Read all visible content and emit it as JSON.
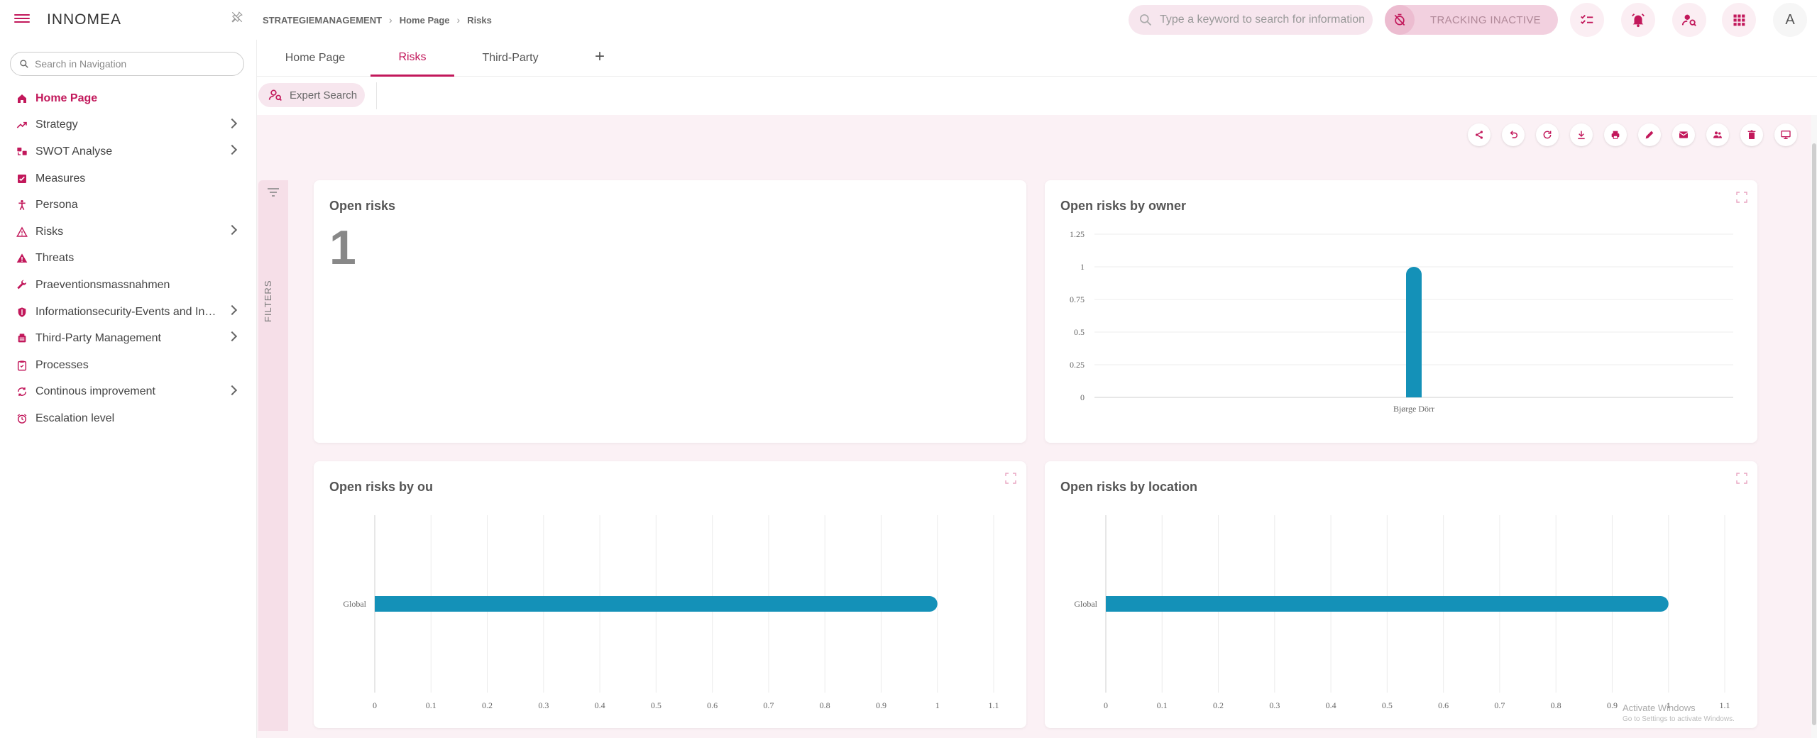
{
  "app": {
    "logo": "INNOMEA",
    "breadcrumb": [
      "STRATEGIEMANAGEMENT",
      "Home Page",
      "Risks"
    ],
    "search_placeholder": "Type a keyword to search for information",
    "tracking_label": "TRACKING INACTIVE",
    "avatar_letter": "A"
  },
  "sidebar": {
    "search_placeholder": "Search in Navigation",
    "items": [
      {
        "label": "Home Page",
        "icon": "home-icon",
        "active": true,
        "expandable": false
      },
      {
        "label": "Strategy",
        "icon": "trending-icon",
        "active": false,
        "expandable": true
      },
      {
        "label": "SWOT Analyse",
        "icon": "swot-icon",
        "active": false,
        "expandable": true
      },
      {
        "label": "Measures",
        "icon": "checkbox-icon",
        "active": false,
        "expandable": false
      },
      {
        "label": "Persona",
        "icon": "person-icon",
        "active": false,
        "expandable": false
      },
      {
        "label": "Risks",
        "icon": "warning-outline-icon",
        "active": false,
        "expandable": true
      },
      {
        "label": "Threats",
        "icon": "warning-icon",
        "active": false,
        "expandable": false
      },
      {
        "label": "Praeventionsmassnahmen",
        "icon": "wrench-icon",
        "active": false,
        "expandable": false
      },
      {
        "label": "Informationsecurity-Events and Incid...",
        "icon": "shield-icon",
        "active": false,
        "expandable": true
      },
      {
        "label": "Third-Party Management",
        "icon": "building-icon",
        "active": false,
        "expandable": true
      },
      {
        "label": "Processes",
        "icon": "clipboard-icon",
        "active": false,
        "expandable": false
      },
      {
        "label": "Continous improvement",
        "icon": "cycle-icon",
        "active": false,
        "expandable": true
      },
      {
        "label": "Escalation level",
        "icon": "alarm-icon",
        "active": false,
        "expandable": false
      }
    ]
  },
  "tabs": [
    {
      "label": "Home Page",
      "active": false
    },
    {
      "label": "Risks",
      "active": true
    },
    {
      "label": "Third-Party",
      "active": false
    }
  ],
  "toolbar": {
    "expert_search": "Expert Search",
    "filters_label": "FILTERS",
    "actions": [
      "share-icon",
      "undo-icon",
      "refresh-icon",
      "download-icon",
      "print-icon",
      "edit-icon",
      "mail-icon",
      "users-icon",
      "delete-icon",
      "monitor-icon"
    ]
  },
  "panels": {
    "open_risks": {
      "title": "Open risks",
      "value": "1"
    },
    "by_owner": {
      "title": "Open risks by owner"
    },
    "by_ou": {
      "title": "Open risks by ou"
    },
    "by_location": {
      "title": "Open risks by location"
    }
  },
  "chart_data": [
    {
      "type": "bar",
      "title": "Open risks by owner",
      "orientation": "vertical",
      "categories": [
        "Bjørge Dörr"
      ],
      "values": [
        1
      ],
      "ylim": [
        0,
        1.25
      ],
      "yticks": [
        "0",
        "0.25",
        "0.5",
        "0.75",
        "1",
        "1.25"
      ],
      "color": "#1491b8"
    },
    {
      "type": "bar",
      "title": "Open risks by ou",
      "orientation": "horizontal",
      "categories": [
        "Global"
      ],
      "values": [
        1
      ],
      "xlim": [
        0,
        1.1
      ],
      "xticks": [
        "0",
        "0.1",
        "0.2",
        "0.3",
        "0.4",
        "0.5",
        "0.6",
        "0.7",
        "0.8",
        "0.9",
        "1",
        "1.1"
      ],
      "color": "#1491b8"
    },
    {
      "type": "bar",
      "title": "Open risks by location",
      "orientation": "horizontal",
      "categories": [
        "Global"
      ],
      "values": [
        1
      ],
      "xlim": [
        0,
        1.1
      ],
      "xticks": [
        "0",
        "0.1",
        "0.2",
        "0.3",
        "0.4",
        "0.5",
        "0.6",
        "0.7",
        "0.8",
        "0.9",
        "1",
        "1.1"
      ],
      "color": "#1491b8"
    }
  ],
  "watermark": {
    "line1": "Activate Windows",
    "line2": "Go to Settings to activate Windows."
  }
}
